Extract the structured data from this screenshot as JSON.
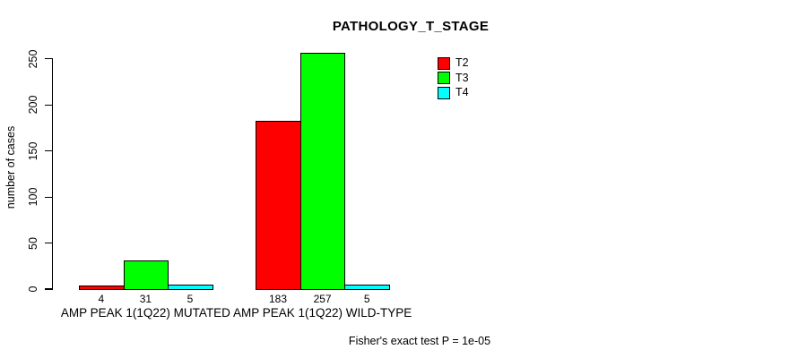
{
  "chart_data": {
    "type": "bar",
    "title": "PATHOLOGY_T_STAGE",
    "xlabel": "",
    "ylabel": "number of cases",
    "categories": [
      "AMP PEAK 1(1Q22) MUTATED",
      "AMP PEAK 1(1Q22) WILD-TYPE"
    ],
    "series": [
      {
        "name": "T2",
        "color": "#FF0000",
        "values": [
          4,
          183
        ]
      },
      {
        "name": "T3",
        "color": "#00FF00",
        "values": [
          31,
          257
        ]
      },
      {
        "name": "T4",
        "color": "#00FFFF",
        "values": [
          5,
          5
        ]
      }
    ],
    "yticks": [
      0,
      50,
      100,
      150,
      200,
      250
    ],
    "ylim": [
      0,
      265
    ],
    "grid": false,
    "bar_value_labels_shown": true,
    "legend_position": "top-right",
    "annotation": "Fisher's exact test P = 1e-05"
  },
  "colors": {
    "background": "#FFFFFF",
    "axis": "#000000",
    "text": "#000000",
    "bar_border": "#000000"
  }
}
